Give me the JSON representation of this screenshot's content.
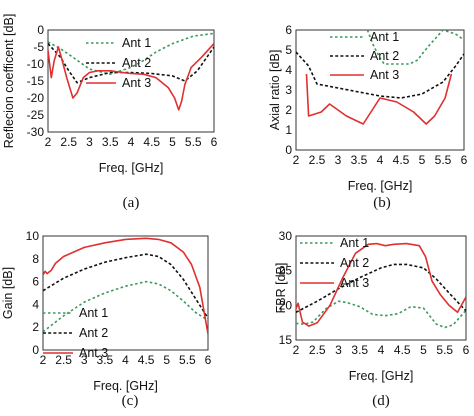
{
  "chart_data": [
    {
      "id": "a",
      "type": "line",
      "caption": "(a)",
      "xlabel": "Freq. [GHz]",
      "ylabel": "Reflecion coefficent [dB]",
      "xlim": [
        2,
        6
      ],
      "ylim": [
        -30,
        0
      ],
      "xticks": [
        2,
        2.5,
        3,
        3.5,
        4,
        4.5,
        5,
        5.5,
        6
      ],
      "xtick_labels": [
        "2",
        "2.5",
        "3",
        "3.5",
        "4",
        "4.5",
        "5",
        "5.5",
        "6"
      ],
      "yticks": [
        -30,
        -25,
        -20,
        -15,
        -10,
        -5,
        0
      ],
      "ytick_labels": [
        "-30",
        "-25",
        "-20",
        "-15",
        "-10",
        "-5",
        "0"
      ],
      "legend_position": "top-right",
      "series": [
        {
          "name": "Ant 1",
          "color": "#3a9a5a",
          "dash": "dotted",
          "x": [
            2,
            2.3,
            2.6,
            3,
            3.5,
            4,
            4.3,
            4.6,
            5,
            5.5,
            6
          ],
          "y": [
            -3.5,
            -5.5,
            -8,
            -11.5,
            -13,
            -11,
            -9,
            -6.5,
            -4,
            -1.8,
            -1
          ]
        },
        {
          "name": "Ant 2",
          "color": "#111111",
          "dash": "dashed",
          "x": [
            2,
            2.3,
            2.5,
            2.7,
            3,
            3.5,
            4,
            4.5,
            5,
            5.3,
            5.6,
            6
          ],
          "y": [
            -4,
            -8,
            -12,
            -15.5,
            -14,
            -12.5,
            -12.5,
            -12.8,
            -13.5,
            -15,
            -12,
            -5
          ]
        },
        {
          "name": "Ant 3",
          "color": "#e03030",
          "dash": "solid",
          "x": [
            2,
            2.08,
            2.15,
            2.25,
            2.32,
            2.45,
            2.6,
            2.7,
            2.85,
            3,
            3.2,
            3.5,
            3.8,
            4,
            4.3,
            4.6,
            4.9,
            5.05,
            5.15,
            5.22,
            5.3,
            5.45,
            5.7,
            6
          ],
          "y": [
            -6,
            -14,
            -9,
            -5,
            -8,
            -14,
            -20,
            -18.5,
            -14,
            -12.5,
            -12,
            -12,
            -12.5,
            -12.8,
            -13,
            -14,
            -17,
            -20,
            -23.5,
            -21,
            -16,
            -11,
            -8,
            -4
          ]
        }
      ]
    },
    {
      "id": "b",
      "type": "line",
      "caption": "(b)",
      "xlabel": "Freq. [GHz]",
      "ylabel": "Axial ratio [dB]",
      "xlim": [
        2,
        6
      ],
      "ylim": [
        0,
        6
      ],
      "xticks": [
        2,
        2.5,
        3,
        3.5,
        4,
        4.5,
        5,
        5.5,
        6
      ],
      "xtick_labels": [
        "2",
        "2.5",
        "3",
        "3.5",
        "4",
        "4.5",
        "5",
        "5.5",
        "6"
      ],
      "yticks": [
        0,
        1,
        2,
        3,
        4,
        5,
        6
      ],
      "ytick_labels": [
        "0",
        "1",
        "2",
        "3",
        "4",
        "5",
        "6"
      ],
      "legend_position": "top-right",
      "series": [
        {
          "name": "Ant 1",
          "color": "#3a9a5a",
          "dash": "dotted",
          "x": [
            3.7,
            3.85,
            4,
            4.1,
            4.7,
            4.9,
            5,
            5.2,
            5.5,
            5.8,
            6
          ],
          "y": [
            6,
            5.2,
            4.6,
            4.3,
            4.3,
            4.5,
            4.8,
            5.3,
            6,
            5.8,
            5.5
          ]
        },
        {
          "name": "Ant 2",
          "color": "#111111",
          "dash": "dashed",
          "x": [
            2,
            2.3,
            2.5,
            3,
            3.5,
            4,
            4.5,
            5,
            5.5,
            5.8,
            6
          ],
          "y": [
            4.9,
            4.2,
            3.3,
            3.1,
            2.9,
            2.7,
            2.6,
            2.8,
            3.4,
            4.2,
            4.8
          ]
        },
        {
          "name": "Ant 3",
          "color": "#e03030",
          "dash": "solid",
          "x": [
            2.25,
            2.3,
            2.6,
            2.8,
            3.2,
            3.6,
            4,
            4.4,
            4.8,
            5.1,
            5.3,
            5.55,
            5.7
          ],
          "y": [
            3.8,
            1.7,
            1.9,
            2.3,
            1.7,
            1.3,
            2.6,
            2.4,
            1.9,
            1.3,
            1.7,
            2.6,
            3.8
          ]
        }
      ]
    },
    {
      "id": "c",
      "type": "line",
      "caption": "(c)",
      "xlabel": "Freq. [GHz]",
      "ylabel": "Gain [dB]",
      "xlim": [
        2,
        6
      ],
      "ylim": [
        0,
        10
      ],
      "xticks": [
        2,
        2.5,
        3,
        3.5,
        4,
        4.5,
        5,
        5.5,
        6
      ],
      "xtick_labels": [
        "2",
        "2.5",
        "3",
        "3.5",
        "4",
        "4.5",
        "5",
        "5.5",
        "6"
      ],
      "yticks": [
        0,
        2,
        4,
        6,
        8,
        10
      ],
      "ytick_labels": [
        "0",
        "2",
        "4",
        "6",
        "8",
        "10"
      ],
      "legend_position": "bottom-center",
      "series": [
        {
          "name": "Ant 1",
          "color": "#3a9a5a",
          "dash": "dotted",
          "x": [
            2,
            2.5,
            3,
            3.5,
            4,
            4.5,
            4.8,
            5.1,
            5.4,
            5.7,
            6
          ],
          "y": [
            1.6,
            3.0,
            4.2,
            5.0,
            5.6,
            6.0,
            5.8,
            5.2,
            4.3,
            3.3,
            2.6
          ]
        },
        {
          "name": "Ant 2",
          "color": "#111111",
          "dash": "dashed",
          "x": [
            2,
            2.5,
            3,
            3.5,
            4,
            4.5,
            4.8,
            5.1,
            5.4,
            5.7,
            6
          ],
          "y": [
            5.2,
            6.3,
            7.1,
            7.7,
            8.1,
            8.4,
            8.2,
            7.5,
            6.2,
            4.5,
            2.8
          ]
        },
        {
          "name": "Ant 3",
          "color": "#e03030",
          "dash": "solid",
          "x": [
            2,
            2.05,
            2.1,
            2.2,
            2.3,
            2.5,
            3,
            3.5,
            4,
            4.5,
            4.8,
            5.1,
            5.4,
            5.6,
            5.8,
            6
          ],
          "y": [
            6.6,
            6.9,
            6.7,
            7.0,
            7.6,
            8.2,
            9.0,
            9.4,
            9.7,
            9.8,
            9.7,
            9.4,
            8.6,
            7.5,
            5.5,
            1.4
          ]
        }
      ]
    },
    {
      "id": "d",
      "type": "line",
      "caption": "(d)",
      "xlabel": "Freq. [GHz]",
      "ylabel": "FBR [dB]",
      "xlim": [
        2,
        6
      ],
      "ylim": [
        15,
        30
      ],
      "xticks": [
        2,
        2.5,
        3,
        3.5,
        4,
        4.5,
        5,
        5.5,
        6
      ],
      "xtick_labels": [
        "2",
        "2.5",
        "3",
        "3.5",
        "4",
        "4.5",
        "5",
        "5.5",
        "6"
      ],
      "yticks": [
        15,
        20,
        25,
        30
      ],
      "ytick_labels": [
        "15",
        "20",
        "25",
        "30"
      ],
      "legend_position": "top-center",
      "series": [
        {
          "name": "Ant 1",
          "color": "#3a9a5a",
          "dash": "dotted",
          "x": [
            2,
            2.2,
            2.4,
            2.7,
            3,
            3.2,
            3.5,
            3.8,
            4.1,
            4.4,
            4.7,
            5,
            5.3,
            5.5,
            5.7,
            6
          ],
          "y": [
            17.4,
            17.3,
            17.6,
            19.5,
            20.6,
            20.4,
            19.8,
            18.7,
            18.5,
            18.8,
            19.8,
            19.6,
            17.3,
            16.8,
            17.2,
            19.3
          ]
        },
        {
          "name": "Ant 2",
          "color": "#111111",
          "dash": "dashed",
          "x": [
            2,
            2.5,
            3,
            3.5,
            4,
            4.3,
            4.6,
            5,
            5.3,
            5.6,
            6
          ],
          "y": [
            19.0,
            20.6,
            22.4,
            24.0,
            25.4,
            25.9,
            25.9,
            25.4,
            23.8,
            21.8,
            19.2
          ]
        },
        {
          "name": "Ant 3",
          "color": "#e03030",
          "dash": "solid",
          "x": [
            2,
            2.05,
            2.15,
            2.3,
            2.5,
            2.8,
            3.1,
            3.4,
            3.7,
            3.9,
            4.1,
            4.3,
            4.6,
            4.9,
            5.05,
            5.2,
            5.4,
            5.6,
            5.8,
            6
          ],
          "y": [
            19.5,
            20.3,
            17.6,
            17.0,
            17.5,
            20.0,
            24.0,
            27.5,
            28.8,
            28.9,
            28.6,
            28.8,
            28.9,
            28.6,
            27.0,
            23.5,
            21.5,
            20.0,
            19.0,
            21.2
          ]
        }
      ]
    }
  ]
}
